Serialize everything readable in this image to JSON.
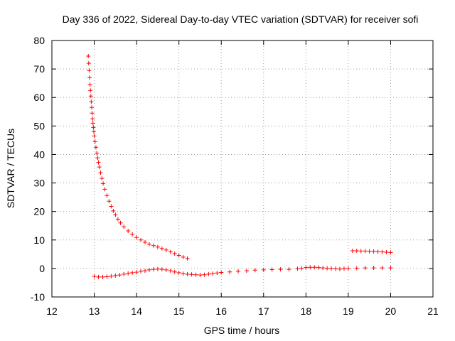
{
  "chart_data": {
    "type": "scatter",
    "title": "Day 336 of 2022, Sidereal Day-to-day VTEC variation (SDTVAR) for receiver sofi",
    "xlabel": "GPS time / hours",
    "ylabel": "SDTVAR / TECUs",
    "xlim": [
      12,
      21
    ],
    "ylim": [
      -10,
      80
    ],
    "xticks": [
      12,
      13,
      14,
      15,
      16,
      17,
      18,
      19,
      20,
      21
    ],
    "yticks": [
      -10,
      0,
      10,
      20,
      30,
      40,
      50,
      60,
      70,
      80
    ],
    "grid": true,
    "marker": "+",
    "series": [
      {
        "name": "decaying arc",
        "color": "#ff0000",
        "points": [
          [
            12.86,
            74.5
          ],
          [
            12.87,
            72.0
          ],
          [
            12.88,
            69.5
          ],
          [
            12.89,
            67.0
          ],
          [
            12.9,
            64.5
          ],
          [
            12.91,
            62.5
          ],
          [
            12.92,
            60.5
          ],
          [
            12.93,
            58.5
          ],
          [
            12.94,
            56.5
          ],
          [
            12.95,
            54.5
          ],
          [
            12.96,
            52.5
          ],
          [
            12.97,
            51.0
          ],
          [
            12.98,
            49.5
          ],
          [
            12.99,
            48.0
          ],
          [
            13.0,
            46.5
          ],
          [
            13.02,
            44.5
          ],
          [
            13.04,
            42.5
          ],
          [
            13.06,
            40.5
          ],
          [
            13.08,
            38.8
          ],
          [
            13.1,
            37.2
          ],
          [
            13.12,
            35.6
          ],
          [
            13.15,
            33.6
          ],
          [
            13.18,
            31.6
          ],
          [
            13.21,
            29.8
          ],
          [
            13.25,
            27.8
          ],
          [
            13.3,
            25.6
          ],
          [
            13.35,
            23.6
          ],
          [
            13.4,
            21.8
          ],
          [
            13.45,
            20.2
          ],
          [
            13.5,
            18.8
          ],
          [
            13.56,
            17.3
          ],
          [
            13.62,
            16.0
          ],
          [
            13.7,
            14.6
          ],
          [
            13.8,
            13.2
          ],
          [
            13.9,
            12.0
          ],
          [
            14.0,
            10.9
          ],
          [
            14.1,
            10.0
          ],
          [
            14.2,
            9.2
          ],
          [
            14.3,
            8.5
          ],
          [
            14.4,
            8.0
          ],
          [
            14.5,
            7.5
          ],
          [
            14.6,
            7.0
          ],
          [
            14.7,
            6.5
          ],
          [
            14.8,
            5.8
          ],
          [
            14.9,
            5.2
          ],
          [
            15.0,
            4.6
          ],
          [
            15.1,
            4.0
          ],
          [
            15.2,
            3.5
          ]
        ]
      },
      {
        "name": "baseline track",
        "color": "#ff0000",
        "points": [
          [
            13.0,
            -2.8
          ],
          [
            13.1,
            -3.0
          ],
          [
            13.2,
            -3.0
          ],
          [
            13.3,
            -2.9
          ],
          [
            13.4,
            -2.7
          ],
          [
            13.5,
            -2.5
          ],
          [
            13.6,
            -2.3
          ],
          [
            13.7,
            -2.0
          ],
          [
            13.8,
            -1.7
          ],
          [
            13.9,
            -1.5
          ],
          [
            14.0,
            -1.3
          ],
          [
            14.1,
            -1.0
          ],
          [
            14.2,
            -0.8
          ],
          [
            14.3,
            -0.5
          ],
          [
            14.4,
            -0.3
          ],
          [
            14.5,
            -0.2
          ],
          [
            14.6,
            -0.3
          ],
          [
            14.7,
            -0.5
          ],
          [
            14.8,
            -0.8
          ],
          [
            14.9,
            -1.2
          ],
          [
            15.0,
            -1.5
          ],
          [
            15.1,
            -1.8
          ],
          [
            15.2,
            -2.0
          ],
          [
            15.3,
            -2.1
          ],
          [
            15.4,
            -2.2
          ],
          [
            15.5,
            -2.3
          ],
          [
            15.6,
            -2.2
          ],
          [
            15.7,
            -2.0
          ],
          [
            15.8,
            -1.8
          ],
          [
            15.9,
            -1.6
          ],
          [
            16.0,
            -1.4
          ],
          [
            16.2,
            -1.2
          ],
          [
            16.4,
            -1.0
          ],
          [
            16.6,
            -0.8
          ],
          [
            16.8,
            -0.6
          ],
          [
            17.0,
            -0.5
          ],
          [
            17.2,
            -0.4
          ],
          [
            17.4,
            -0.3
          ],
          [
            17.6,
            -0.3
          ],
          [
            17.8,
            -0.1
          ],
          [
            17.9,
            0.1
          ],
          [
            18.0,
            0.3
          ],
          [
            18.1,
            0.4
          ],
          [
            18.2,
            0.4
          ],
          [
            18.3,
            0.3
          ],
          [
            18.4,
            0.2
          ],
          [
            18.5,
            0.1
          ],
          [
            18.6,
            0.0
          ],
          [
            18.7,
            -0.1
          ],
          [
            18.8,
            -0.2
          ],
          [
            18.9,
            -0.1
          ],
          [
            19.0,
            0.0
          ],
          [
            19.2,
            0.1
          ],
          [
            19.4,
            0.2
          ],
          [
            19.6,
            0.2
          ],
          [
            19.8,
            0.2
          ],
          [
            20.0,
            0.2
          ]
        ]
      },
      {
        "name": "upper short segment",
        "color": "#ff0000",
        "points": [
          [
            19.1,
            6.2
          ],
          [
            19.2,
            6.2
          ],
          [
            19.3,
            6.1
          ],
          [
            19.4,
            6.1
          ],
          [
            19.5,
            6.0
          ],
          [
            19.6,
            6.0
          ],
          [
            19.7,
            5.9
          ],
          [
            19.8,
            5.8
          ],
          [
            19.9,
            5.7
          ],
          [
            20.0,
            5.6
          ]
        ]
      }
    ]
  }
}
